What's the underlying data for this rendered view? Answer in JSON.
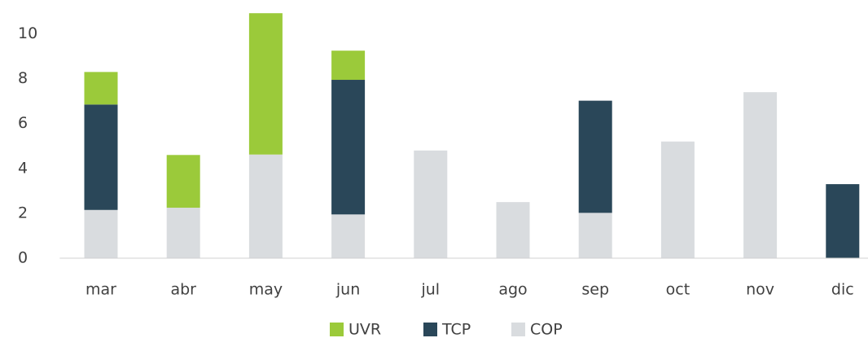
{
  "chart_data": {
    "type": "bar",
    "stacked": true,
    "categories": [
      "mar",
      "abr",
      "may",
      "jun",
      "jul",
      "ago",
      "sep",
      "oct",
      "nov",
      "dic"
    ],
    "series": [
      {
        "name": "UVR",
        "color": "#9bca3a",
        "values": [
          1.45,
          2.35,
          6.3,
          1.3,
          0,
          0,
          0,
          0,
          0,
          0
        ]
      },
      {
        "name": "TCP",
        "color": "#2a4759",
        "values": [
          4.7,
          0,
          0,
          6.0,
          0,
          0,
          5.0,
          0,
          0,
          3.3
        ]
      },
      {
        "name": "COP",
        "color": "#d9dcdf",
        "values": [
          2.15,
          2.25,
          4.62,
          1.95,
          4.8,
          2.5,
          2.02,
          5.2,
          7.4,
          0
        ]
      }
    ],
    "ylim": [
      0,
      11
    ],
    "yticks": [
      0,
      2,
      4,
      6,
      8,
      10
    ],
    "grid": false,
    "legend": "bottom"
  }
}
